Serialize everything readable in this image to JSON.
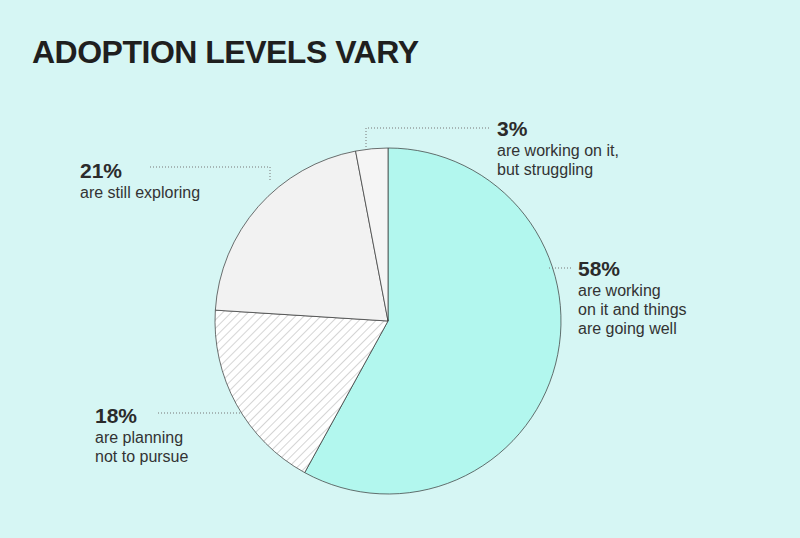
{
  "chart_data": {
    "type": "pie",
    "title": "ADOPTION LEVELS VARY",
    "categories": [
      "are working\non it and things\nare going well",
      "are planning\nnot to pursue",
      "are still exploring",
      "are working on it,\nbut struggling"
    ],
    "values": [
      58,
      18,
      21,
      3
    ],
    "value_labels": [
      "58%",
      "18%",
      "21%",
      "3%"
    ],
    "colors": [
      "#b2f7ee",
      "#c8c8c8",
      "#f2f2f2",
      "#f5f5f5"
    ],
    "data_labels": true
  }
}
